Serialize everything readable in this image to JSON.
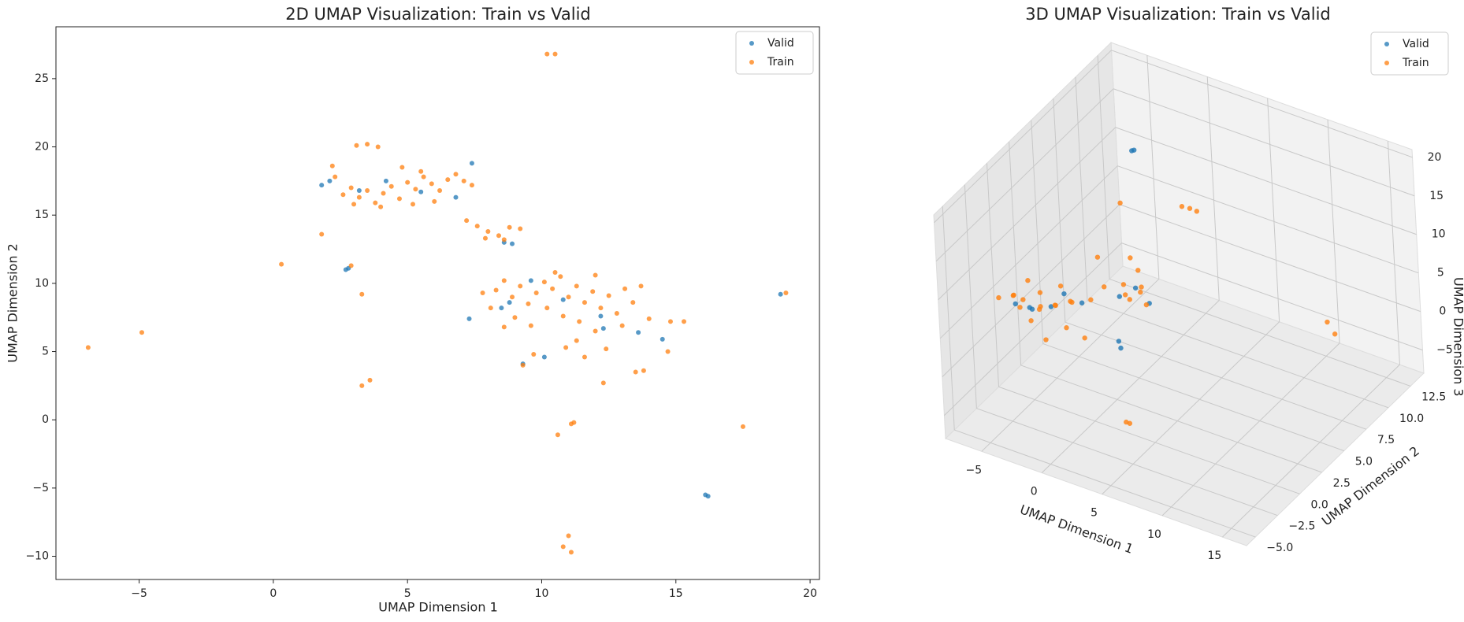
{
  "chart_data": [
    {
      "type": "scatter",
      "title": "2D UMAP Visualization: Train vs Valid",
      "xlabel": "UMAP Dimension 1",
      "ylabel": "UMAP Dimension 2",
      "xlim": [
        -8.1,
        20.35
      ],
      "ylim": [
        -11.7,
        28.8
      ],
      "xticks": [
        {
          "value": -5,
          "label": "−5"
        },
        0,
        5,
        10,
        15,
        20
      ],
      "yticks": [
        {
          "value": -10,
          "label": "−10"
        },
        {
          "value": -5,
          "label": "−5"
        },
        0,
        5,
        10,
        15,
        20,
        25
      ],
      "legend": "upper right",
      "series": [
        {
          "name": "Valid",
          "color": "#1f77b4",
          "x": [
            1.8,
            2.1,
            2.7,
            2.8,
            3.2,
            7.4,
            6.8,
            8.6,
            8.9,
            7.3,
            8.5,
            8.8,
            9.6,
            10.8,
            9.3,
            10.1,
            12.3,
            13.6,
            14.5,
            12.2,
            16.1,
            16.2,
            18.9,
            5.5,
            4.2
          ],
          "values": [
            17.2,
            17.5,
            11.0,
            11.1,
            16.8,
            18.8,
            16.3,
            13.0,
            12.9,
            7.4,
            8.2,
            8.6,
            10.2,
            8.8,
            4.1,
            4.6,
            6.7,
            6.4,
            5.9,
            7.6,
            -5.5,
            -5.6,
            9.2,
            16.7,
            17.5
          ]
        },
        {
          "name": "Train",
          "color": "#ff7f0e",
          "x": [
            2.6,
            2.9,
            3.2,
            3.5,
            3.8,
            4.1,
            4.4,
            4.7,
            5.0,
            5.3,
            5.6,
            5.9,
            6.2,
            6.5,
            6.8,
            7.1,
            7.4,
            4.8,
            5.5,
            3.0,
            4.0,
            5.2,
            6.0,
            2.2,
            3.1,
            3.5,
            3.9,
            2.3,
            7.2,
            7.6,
            8.0,
            8.4,
            8.8,
            9.2,
            7.9,
            8.6,
            8.3,
            8.6,
            8.9,
            9.2,
            9.5,
            9.8,
            10.1,
            10.4,
            10.7,
            11.0,
            11.3,
            11.6,
            11.9,
            12.2,
            12.5,
            12.8,
            13.1,
            13.4,
            13.7,
            10.2,
            10.8,
            11.4,
            9.0,
            8.6,
            9.6,
            12.0,
            13.0,
            14.0,
            14.8,
            15.3,
            11.3,
            10.9,
            11.6,
            12.4,
            12.3,
            13.5,
            13.8,
            14.7,
            9.3,
            9.7,
            10.5,
            12.0,
            8.1,
            7.8,
            -6.9,
            -4.9,
            0.3,
            1.8,
            2.9,
            3.3,
            3.3,
            3.6,
            10.2,
            10.5,
            10.6,
            11.1,
            11.2,
            10.8,
            11.1,
            11.0,
            17.5,
            19.1
          ],
          "values": [
            16.5,
            17.0,
            16.3,
            16.8,
            15.9,
            16.6,
            17.1,
            16.2,
            17.4,
            16.9,
            17.8,
            17.3,
            16.8,
            17.6,
            18.0,
            17.5,
            17.2,
            18.5,
            18.2,
            15.8,
            15.6,
            15.8,
            16.0,
            18.6,
            20.1,
            20.2,
            20.0,
            17.8,
            14.6,
            14.2,
            13.8,
            13.5,
            14.1,
            14.0,
            13.3,
            13.2,
            9.5,
            10.2,
            9.0,
            9.8,
            8.5,
            9.3,
            10.1,
            9.6,
            10.5,
            9.0,
            9.8,
            8.6,
            9.4,
            8.2,
            9.1,
            7.8,
            9.6,
            8.6,
            9.8,
            8.2,
            7.6,
            7.2,
            7.5,
            6.8,
            6.9,
            6.5,
            6.9,
            7.4,
            7.2,
            7.2,
            5.8,
            5.3,
            4.6,
            5.2,
            2.7,
            3.5,
            3.6,
            5.0,
            4.0,
            4.8,
            10.8,
            10.6,
            8.2,
            9.3,
            5.3,
            6.4,
            11.4,
            13.6,
            11.3,
            9.2,
            2.5,
            2.9,
            26.8,
            26.8,
            -1.1,
            -0.3,
            -0.2,
            -9.3,
            -9.7,
            -8.5,
            -0.5,
            9.3
          ]
        }
      ]
    },
    {
      "type": "scatter3d",
      "title": "3D UMAP Visualization: Train vs Valid",
      "xlabel": "UMAP Dimension 1",
      "ylabel": "UMAP Dimension 2",
      "zlabel": "UMAP Dimension 3",
      "xlim": [
        -8,
        17
      ],
      "ylim": [
        -6,
        14
      ],
      "zlim": [
        -8,
        21
      ],
      "xticks": [
        {
          "value": -5,
          "label": "−5"
        },
        0,
        5,
        10,
        15
      ],
      "yticks": [
        {
          "value": -5,
          "label": "−5.0"
        },
        {
          "value": -2.5,
          "label": "−2.5"
        },
        {
          "value": 0,
          "label": "0.0"
        },
        2.5,
        {
          "value": 5,
          "label": "5.0"
        },
        7.5,
        {
          "value": 10,
          "label": "10.0"
        },
        12.5
      ],
      "zticks": [
        {
          "value": -5,
          "label": "−5"
        },
        0,
        5,
        10,
        15,
        20
      ],
      "legend": "upper right",
      "series": [
        {
          "name": "Valid",
          "color": "#1f77b4",
          "x": [
            -7,
            -5.5,
            -4,
            -2,
            -6,
            -2,
            -1.8,
            -1.5,
            -2.5,
            0,
            0,
            0.3,
            -3
          ],
          "y": [
            1,
            0.6,
            1,
            1.8,
            1.5,
            8,
            8,
            7,
            6.5,
            6.5,
            3,
            2.8,
            1.2
          ],
          "z": [
            2.2,
            3,
            3.5,
            4.2,
            1.5,
            17,
            17.2,
            0.6,
            -0.5,
            0,
            -1,
            -1.5,
            5.5
          ]
        },
        {
          "name": "Train",
          "color": "#ff7f0e",
          "x": [
            -8,
            -7.5,
            -7,
            -6.5,
            -6,
            -5.5,
            -5,
            -4.5,
            -4,
            -3.5,
            -3,
            -2.5,
            -2,
            -6.8,
            -5.2,
            -4.2,
            -1,
            -0.5,
            -3,
            -2.5,
            -2,
            -1.5,
            -1,
            -2,
            -0.5,
            -3,
            -2.2,
            -1,
            -3,
            -4,
            2,
            2.5,
            3,
            13,
            13.2,
            5,
            5.3
          ],
          "y": [
            0.5,
            1.5,
            0.8,
            1.2,
            0.2,
            1.8,
            1,
            0.5,
            1.5,
            0.8,
            2,
            1.2,
            0,
            2.2,
            0.3,
            2.4,
            1.5,
            0,
            -1,
            7,
            6.5,
            7.5,
            7,
            8,
            6.8,
            8.5,
            7.2,
            3,
            5,
            9,
            8,
            8.2,
            8.3,
            9,
            9.5,
            -3,
            -3
          ],
          "z": [
            3,
            2.5,
            3.5,
            2.8,
            3.2,
            3.6,
            2.6,
            3.8,
            3.1,
            4.2,
            3.5,
            4.8,
            3,
            4,
            1.8,
            4.5,
            5.5,
            2.5,
            2,
            0.5,
            0,
            -0.5,
            1,
            1.5,
            -0.8,
            2,
            -1.5,
            5.5,
            6,
            8,
            12,
            11.8,
            11.6,
            2,
            0,
            -2,
            -2
          ]
        }
      ]
    }
  ]
}
